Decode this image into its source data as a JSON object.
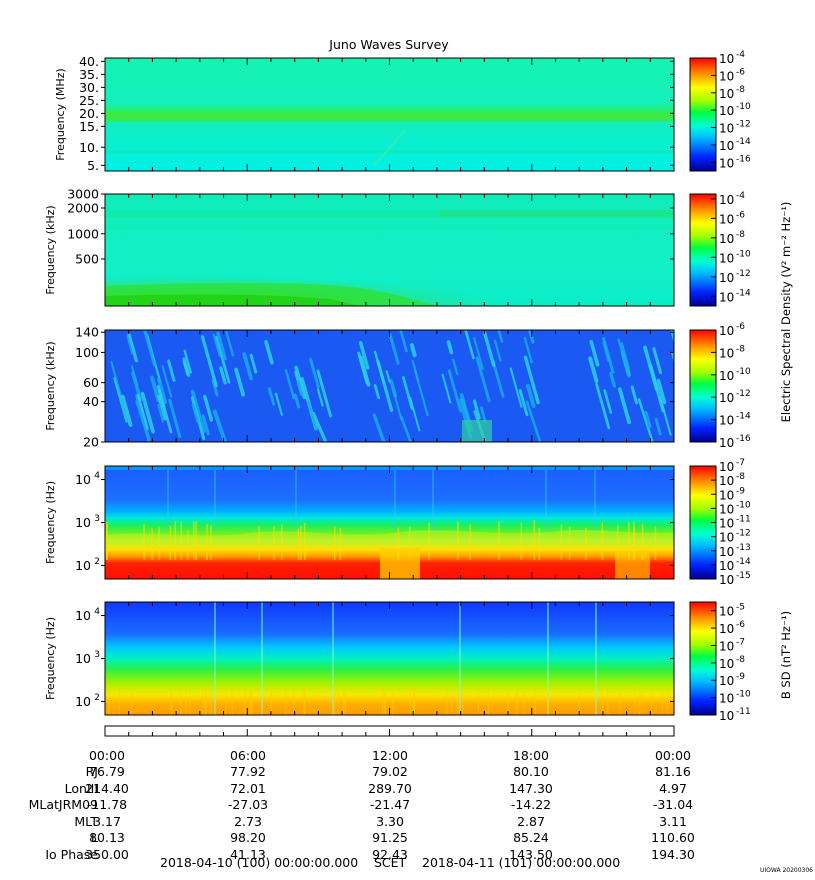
{
  "title": "Juno Waves Survey",
  "credit": "UIOWA 20200306",
  "chart_data": {
    "type": "heatmap",
    "time_ticks": [
      "00:00",
      "06:00",
      "12:00",
      "18:00",
      "00:00"
    ],
    "panels": [
      {
        "id": "hfr-high",
        "ylabel": "Frequency (MHz)",
        "yticks": [
          "40.",
          "35.",
          "30.",
          "25.",
          "20.",
          "15.",
          "10.",
          "5."
        ],
        "colorbar_ticks": [
          "10",
          "10",
          "10",
          "10",
          "10",
          "10",
          "10"
        ],
        "colorbar_exps": [
          "-4",
          "-6",
          "-8",
          "-10",
          "-12",
          "-14",
          "-16"
        ],
        "colorbar_range": [
          -17,
          -4
        ],
        "colorbar_label": ""
      },
      {
        "id": "hfr-low",
        "ylabel": "Frequency (kHz)",
        "yticks": [
          "3000",
          "2000",
          "1000",
          "500"
        ],
        "colorbar_ticks": [
          "10",
          "10",
          "10",
          "10",
          "10",
          "10"
        ],
        "colorbar_exps": [
          "-4",
          "-6",
          "-8",
          "-10",
          "-12",
          "-14"
        ],
        "colorbar_range": [
          -15,
          -3.5
        ],
        "colorbar_label": ""
      },
      {
        "id": "lfr-high",
        "ylabel": "Frequency (kHz)",
        "yticks": [
          "140",
          "100",
          "60",
          "40",
          "20"
        ],
        "colorbar_ticks": [
          "10",
          "10",
          "10",
          "10",
          "10",
          "10"
        ],
        "colorbar_exps": [
          "-6",
          "-8",
          "-10",
          "-12",
          "-14",
          "-16"
        ],
        "colorbar_range": [
          -16,
          -6
        ],
        "colorbar_label": "Electric Spectral Density (V² m⁻² Hz⁻¹)"
      },
      {
        "id": "lfr-low-e",
        "ylabel": "Frequency (Hz)",
        "yticks": [
          "10",
          "10",
          "10"
        ],
        "ytick_exps": [
          "4",
          "3",
          "2"
        ],
        "colorbar_ticks": [
          "10",
          "10",
          "10",
          "10",
          "10",
          "10",
          "10",
          "10",
          "10"
        ],
        "colorbar_exps": [
          "-7",
          "-8",
          "-9",
          "-10",
          "-11",
          "-12",
          "-13",
          "-14",
          "-15"
        ],
        "colorbar_range": [
          -15,
          -7
        ],
        "colorbar_label": ""
      },
      {
        "id": "lfr-low-b",
        "ylabel": "Frequency (Hz)",
        "yticks": [
          "10",
          "10",
          "10"
        ],
        "ytick_exps": [
          "4",
          "3",
          "2"
        ],
        "colorbar_ticks": [
          "10",
          "10",
          "10",
          "10",
          "10",
          "10",
          "10"
        ],
        "colorbar_exps": [
          "-5",
          "-6",
          "-7",
          "-8",
          "-9",
          "-10",
          "-11"
        ],
        "colorbar_range": [
          -11,
          -4.5
        ],
        "colorbar_label": "B SD (nT² Hz⁻¹)"
      }
    ],
    "ephemeris": {
      "rows": [
        {
          "label": "RJ",
          "values": [
            "76.79",
            "77.92",
            "79.02",
            "80.10",
            "81.16"
          ]
        },
        {
          "label": "LonIII",
          "values": [
            "214.40",
            "72.01",
            "289.70",
            "147.30",
            "4.97"
          ]
        },
        {
          "label": "MLatJRM09",
          "values": [
            "-11.78",
            "-27.03",
            "-21.47",
            "-14.22",
            "-31.04"
          ]
        },
        {
          "label": "MLT",
          "values": [
            "3.17",
            "2.73",
            "3.30",
            "2.87",
            "3.11"
          ]
        },
        {
          "label": "L",
          "values": [
            "80.13",
            "98.20",
            "91.25",
            "85.24",
            "110.60"
          ]
        },
        {
          "label": "Io Phase",
          "values": [
            "350.00",
            "41.13",
            "92.43",
            "143.50",
            "194.30"
          ]
        }
      ]
    },
    "footer": {
      "start": "2018-04-10 (100) 00:00:00.000",
      "axis": "SCET",
      "end": "2018-04-11 (101) 00:00:00.000"
    }
  }
}
